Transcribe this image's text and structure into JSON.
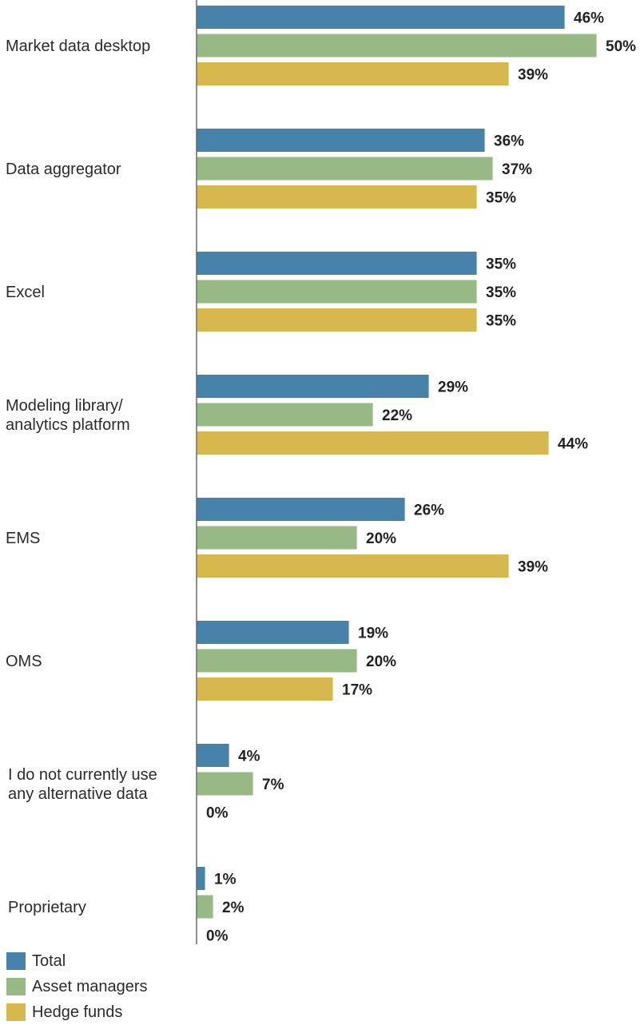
{
  "chart_data": {
    "type": "bar",
    "orientation": "horizontal",
    "categories": [
      "Market data desktop",
      "Data aggregator",
      "Excel",
      "Modeling library/ analytics platform",
      "EMS",
      "OMS",
      "I do not currently use any alternative data",
      "Proprietary"
    ],
    "category_lines": [
      [
        "Market data desktop"
      ],
      [
        "Data aggregator"
      ],
      [
        "Excel"
      ],
      [
        "Modeling library/",
        "analytics platform"
      ],
      [
        "EMS"
      ],
      [
        "OMS"
      ],
      [
        "I do not currently use",
        "any alternative data"
      ],
      [
        "Proprietary"
      ]
    ],
    "series": [
      {
        "name": "Total",
        "color": "#4682a9",
        "values": [
          46,
          36,
          35,
          29,
          26,
          19,
          4,
          1
        ]
      },
      {
        "name": "Asset managers",
        "color": "#96b986",
        "values": [
          50,
          37,
          35,
          22,
          20,
          20,
          7,
          2
        ]
      },
      {
        "name": "Hedge funds",
        "color": "#d6b84e",
        "values": [
          39,
          35,
          35,
          44,
          39,
          17,
          0,
          0
        ]
      }
    ],
    "value_suffix": "%",
    "xlim": [
      0,
      50
    ],
    "legend_position": "bottom-left",
    "grid": false
  }
}
